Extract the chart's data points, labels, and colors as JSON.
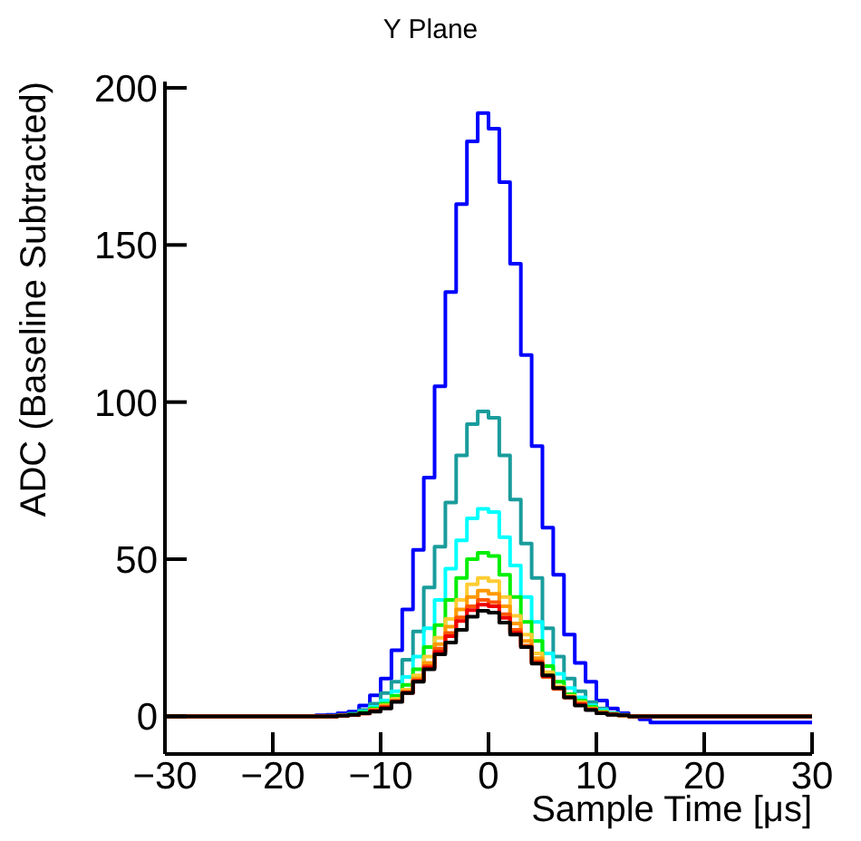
{
  "chart_data": {
    "type": "histogram",
    "title": "Y Plane",
    "xlabel": "Sample Time [μs]",
    "ylabel": "ADC (Baseline Subtracted)",
    "bins": [
      -30,
      -29,
      -28,
      -27,
      -26,
      -25,
      -24,
      -23,
      -22,
      -21,
      -20,
      -19,
      -18,
      -17,
      -16,
      -15,
      -14,
      -13,
      -12,
      -11,
      -10,
      -9,
      -8,
      -7,
      -6,
      -5,
      -4,
      -3,
      -2,
      -1,
      0,
      1,
      2,
      3,
      4,
      5,
      6,
      7,
      8,
      9,
      10,
      11,
      12,
      13,
      14,
      15,
      16,
      17,
      18,
      19,
      20,
      21,
      22,
      23,
      24,
      25,
      26,
      27,
      28,
      29,
      30
    ],
    "xlim": [
      -30,
      30
    ],
    "xticks": [
      -30,
      -20,
      -10,
      0,
      10,
      20,
      30
    ],
    "ylim": [
      -12,
      202
    ],
    "yticks": [
      0,
      50,
      100,
      150,
      200
    ],
    "grid": false,
    "legend": false,
    "line_style": "solid",
    "marker": "none",
    "series": [
      {
        "color": "#0000ff",
        "values": [
          0,
          0,
          0,
          0,
          0,
          0,
          0,
          0,
          0,
          0,
          0,
          0,
          0,
          0,
          0.3,
          0.5,
          1,
          1.5,
          3.4,
          6.7,
          12,
          21,
          34,
          53,
          76,
          105,
          135,
          163,
          183,
          192,
          187,
          170,
          144,
          115,
          86,
          60,
          45,
          26,
          17,
          11,
          5,
          2.5,
          1,
          0,
          -1,
          -2,
          -2,
          -2,
          -2,
          -2,
          -2,
          -2,
          -2,
          -2,
          -2,
          -2,
          -2,
          -2,
          -2,
          -2
        ]
      },
      {
        "color": "#1a9c9c",
        "values": [
          0,
          0,
          0,
          0,
          0,
          0,
          0,
          0,
          0,
          0,
          0,
          0,
          0,
          0,
          0,
          0.2,
          0.4,
          0.8,
          2,
          4,
          7.4,
          11,
          18,
          27,
          41,
          54,
          68,
          83,
          93,
          97,
          95,
          83,
          69,
          55,
          44,
          28,
          19,
          12,
          8,
          4.5,
          2.5,
          1,
          0.5,
          0,
          0,
          0,
          0,
          0,
          0,
          0,
          0,
          0,
          0,
          0,
          0,
          0,
          0,
          0,
          0,
          0
        ]
      },
      {
        "color": "#00ffff",
        "values": [
          0,
          0,
          0,
          0,
          0,
          0,
          0,
          0,
          0,
          0,
          0,
          0,
          0,
          0,
          0,
          0,
          0.2,
          0.5,
          1.5,
          3,
          5,
          8,
          12.5,
          19,
          28,
          37,
          47,
          56,
          63,
          66,
          65,
          57,
          48,
          38,
          30,
          20,
          13.5,
          9,
          6,
          3.5,
          2,
          1,
          0.5,
          0,
          0,
          0,
          0,
          0,
          0,
          0,
          0,
          0,
          0,
          0,
          0,
          0,
          0,
          0,
          0,
          0
        ]
      },
      {
        "color": "#00ee00",
        "values": [
          0,
          0,
          0,
          0,
          0,
          0,
          0,
          0,
          0,
          0,
          0,
          0,
          0,
          0,
          0,
          0,
          0.2,
          0.5,
          1.2,
          2.5,
          4,
          6.5,
          10,
          15,
          22,
          29,
          37,
          44,
          50,
          52,
          51,
          45,
          38,
          30,
          24,
          16,
          11,
          7,
          5,
          3,
          1.5,
          0.8,
          0.3,
          0,
          0,
          0,
          0,
          0,
          0,
          0,
          0,
          0,
          0,
          0,
          0,
          0,
          0,
          0,
          0,
          0
        ]
      },
      {
        "color": "#ffcc33",
        "values": [
          0,
          0,
          0,
          0,
          0,
          0,
          0,
          0,
          0,
          0,
          0,
          0,
          0,
          0,
          0,
          0,
          0.2,
          0.4,
          1,
          2,
          3.5,
          5.5,
          8.5,
          13,
          19,
          25,
          31,
          37,
          42,
          44,
          43,
          38,
          32,
          26,
          20,
          14,
          9.5,
          6.5,
          4.5,
          2.5,
          1.3,
          0.7,
          0.3,
          0,
          0,
          0,
          0,
          0,
          0,
          0,
          0,
          0,
          0,
          0,
          0,
          0,
          0,
          0,
          0,
          0
        ]
      },
      {
        "color": "#ff9900",
        "values": [
          0,
          0,
          0,
          0,
          0,
          0,
          0,
          0,
          0,
          0,
          0,
          0,
          0,
          0,
          0,
          0,
          0.2,
          0.4,
          1,
          2,
          3.2,
          5,
          8,
          12,
          17,
          23,
          28.5,
          34,
          38,
          40,
          39,
          35,
          29.5,
          24,
          18.5,
          13,
          9,
          6,
          4,
          2.4,
          1.2,
          0.6,
          0.3,
          0,
          0,
          0,
          0,
          0,
          0,
          0,
          0,
          0,
          0,
          0,
          0,
          0,
          0,
          0,
          0,
          0
        ]
      },
      {
        "color": "#ff5500",
        "values": [
          0,
          0,
          0,
          0,
          0,
          0,
          0,
          0,
          0,
          0,
          0,
          0,
          0,
          0,
          0,
          0,
          0.2,
          0.4,
          0.9,
          1.8,
          3,
          4.8,
          7.6,
          11.4,
          16,
          21.5,
          26.5,
          31.5,
          35,
          37,
          36.3,
          32.5,
          27.5,
          22.5,
          17.5,
          12.5,
          8.7,
          6,
          4,
          2.2,
          1.1,
          0.6,
          0.3,
          0,
          0,
          0,
          0,
          0,
          0,
          0,
          0,
          0,
          0,
          0,
          0,
          0,
          0,
          0,
          0,
          0
        ]
      },
      {
        "color": "#ee0000",
        "values": [
          0,
          0,
          0,
          0,
          0,
          0,
          0,
          0,
          0,
          0,
          0,
          0,
          0,
          0,
          0,
          0,
          0.2,
          0.4,
          0.9,
          1.7,
          2.8,
          4.7,
          7.5,
          11.2,
          15.5,
          20.5,
          25.5,
          30.3,
          33.8,
          35.5,
          35,
          31.3,
          26.6,
          22,
          17,
          12.8,
          9,
          6,
          3.7,
          2.1,
          1,
          0.6,
          0.3,
          0,
          0,
          0,
          0,
          0,
          0,
          0,
          0,
          0,
          0,
          0,
          0,
          0,
          0,
          0,
          0,
          0
        ]
      },
      {
        "color": "#000000",
        "values": [
          0,
          0,
          0,
          0,
          0,
          0,
          0,
          0,
          0,
          0,
          0,
          0,
          0,
          0,
          0,
          0,
          0.2,
          0.5,
          1,
          1.5,
          2.5,
          4.6,
          7.4,
          11,
          15,
          19.7,
          23.5,
          27.5,
          31.7,
          33.6,
          33,
          29.8,
          26,
          22,
          16.8,
          13,
          9,
          6,
          3.4,
          2,
          1,
          0.5,
          0.3,
          0,
          0,
          0,
          0,
          0,
          0,
          0,
          0,
          0,
          0,
          0,
          0,
          0,
          0,
          0,
          0,
          0
        ]
      }
    ]
  }
}
